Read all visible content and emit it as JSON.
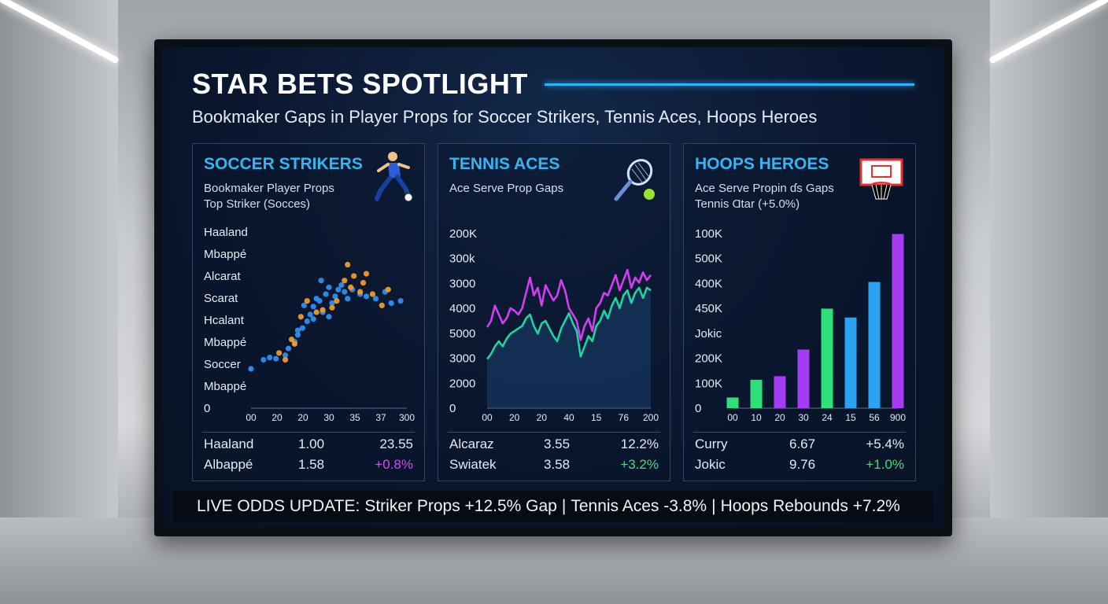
{
  "header": {
    "title": "STAR BETS SPOTLIGHT",
    "subtitle": "Bookmaker Gaps in Player Props for Soccer Strikers, Tennis Aces, Hoops Heroes"
  },
  "panels": {
    "soccer": {
      "title": "SOCCER STRIKERS",
      "sub1": "Bookmaker Player Props",
      "sub2": "Top Striker (Socces)",
      "icon": "soccer-player-icon",
      "rows": [
        {
          "name": "Haaland",
          "odds": "1.00",
          "gap": "23.55",
          "gap_color": "#e6ebf2"
        },
        {
          "name": "Albappé",
          "odds": "1.58",
          "gap": "+0.8%",
          "gap_color": "#d24cf0"
        }
      ]
    },
    "tennis": {
      "title": "TENNIS ACES",
      "sub1": "Ace Serve Prop Gaps",
      "icon": "tennis-racket-icon",
      "rows": [
        {
          "name": "Alcaraz",
          "odds": "3.55",
          "gap": "12.2%",
          "gap_color": "#e6ebf2"
        },
        {
          "name": "Swiatek",
          "odds": "3.58",
          "gap": "+3.2%",
          "gap_color": "#3ee07a"
        }
      ]
    },
    "hoops": {
      "title": "HOOPS HEROES",
      "sub1": "Ace Serve Propin ɗs Gaps",
      "sub2": "Tennis Ɑtar (+5.0%)",
      "icon": "basketball-hoop-icon",
      "rows": [
        {
          "name": "Curry",
          "odds": "6.67",
          "gap": "+5.4%",
          "gap_color": "#e6ebf2"
        },
        {
          "name": "Jokic",
          "odds": "9.76",
          "gap": "+1.0%",
          "gap_color": "#3ee07a"
        }
      ]
    }
  },
  "ticker": {
    "label": "LIVE ODDS UPDATE:",
    "items": [
      "Striker Props +12.5% Gap",
      "|",
      "Tennis Aces -3.8%",
      "|",
      "Hoops Rebounds +7.2%"
    ]
  },
  "colors": {
    "accent": "#36b5f0",
    "magenta": "#d63cf2",
    "green": "#3ee07a"
  },
  "chart_data": [
    {
      "type": "scatter",
      "title": "SOCCER STRIKERS",
      "y_tick_labels": [
        "Haaland",
        "Mbappé",
        "Alcarat",
        "Scarat",
        "Hcalant",
        "Mbappé",
        "Soccer",
        "Mbappé",
        "0"
      ],
      "x_tick_labels": [
        "00",
        "20",
        "20",
        "30",
        "35",
        "37",
        "300"
      ],
      "series": [
        {
          "color": "#2a8ff0",
          "points": [
            [
              0.0,
              0.0
            ],
            [
              0.08,
              0.08
            ],
            [
              0.12,
              0.1
            ],
            [
              0.16,
              0.09
            ],
            [
              0.22,
              0.12
            ],
            [
              0.24,
              0.18
            ],
            [
              0.28,
              0.24
            ],
            [
              0.3,
              0.3
            ],
            [
              0.33,
              0.36
            ],
            [
              0.36,
              0.42
            ],
            [
              0.38,
              0.48
            ],
            [
              0.4,
              0.55
            ],
            [
              0.42,
              0.62
            ],
            [
              0.44,
              0.6
            ],
            [
              0.46,
              0.5
            ],
            [
              0.48,
              0.66
            ],
            [
              0.5,
              0.72
            ],
            [
              0.52,
              0.58
            ],
            [
              0.54,
              0.64
            ],
            [
              0.56,
              0.7
            ],
            [
              0.58,
              0.74
            ],
            [
              0.6,
              0.68
            ],
            [
              0.62,
              0.62
            ],
            [
              0.65,
              0.7
            ],
            [
              0.7,
              0.66
            ],
            [
              0.74,
              0.64
            ],
            [
              0.8,
              0.62
            ],
            [
              0.86,
              0.68
            ],
            [
              0.9,
              0.58
            ],
            [
              0.96,
              0.6
            ],
            [
              0.34,
              0.56
            ],
            [
              0.4,
              0.44
            ],
            [
              0.5,
              0.46
            ],
            [
              0.3,
              0.34
            ],
            [
              0.45,
              0.78
            ]
          ]
        },
        {
          "color": "#f09a2a",
          "points": [
            [
              0.18,
              0.14
            ],
            [
              0.22,
              0.08
            ],
            [
              0.26,
              0.26
            ],
            [
              0.28,
              0.22
            ],
            [
              0.32,
              0.46
            ],
            [
              0.36,
              0.6
            ],
            [
              0.42,
              0.5
            ],
            [
              0.46,
              0.52
            ],
            [
              0.52,
              0.54
            ],
            [
              0.55,
              0.6
            ],
            [
              0.6,
              0.78
            ],
            [
              0.62,
              0.92
            ],
            [
              0.64,
              0.72
            ],
            [
              0.66,
              0.82
            ],
            [
              0.7,
              0.68
            ],
            [
              0.72,
              0.76
            ],
            [
              0.74,
              0.84
            ],
            [
              0.78,
              0.66
            ],
            [
              0.84,
              0.56
            ],
            [
              0.88,
              0.7
            ]
          ]
        }
      ]
    },
    {
      "type": "line",
      "title": "TENNIS ACES",
      "y_tick_labels": [
        "200K",
        "300k",
        "3000",
        "4000",
        "5000",
        "3000",
        "2000",
        "0"
      ],
      "x_tick_labels": [
        "00",
        "20",
        "20",
        "40",
        "15",
        "76",
        "200"
      ],
      "series": [
        {
          "color": "#d63cf2",
          "values": [
            0.45,
            0.5,
            0.62,
            0.55,
            0.48,
            0.52,
            0.6,
            0.58,
            0.55,
            0.6,
            0.72,
            0.84,
            0.7,
            0.76,
            0.62,
            0.78,
            0.72,
            0.66,
            0.7,
            0.82,
            0.74,
            0.6,
            0.55,
            0.5,
            0.35,
            0.46,
            0.52,
            0.42,
            0.6,
            0.64,
            0.72,
            0.7,
            0.78,
            0.86,
            0.74,
            0.82,
            0.9,
            0.76,
            0.84,
            0.8,
            0.88,
            0.82,
            0.86
          ]
        },
        {
          "color": "#22d3a0",
          "values": [
            0.2,
            0.24,
            0.3,
            0.34,
            0.3,
            0.36,
            0.4,
            0.42,
            0.44,
            0.46,
            0.52,
            0.55,
            0.46,
            0.4,
            0.48,
            0.5,
            0.44,
            0.38,
            0.34,
            0.44,
            0.5,
            0.56,
            0.48,
            0.42,
            0.22,
            0.3,
            0.38,
            0.34,
            0.46,
            0.5,
            0.58,
            0.52,
            0.62,
            0.68,
            0.6,
            0.7,
            0.74,
            0.64,
            0.72,
            0.76,
            0.68,
            0.76,
            0.74
          ]
        }
      ]
    },
    {
      "type": "bar",
      "title": "HOOPS HEROES",
      "y_tick_labels": [
        "100K",
        "500K",
        "400K",
        "450K",
        "Jokic",
        "200K",
        "100K",
        "0"
      ],
      "x_tick_labels": [
        "00",
        "10",
        "20",
        "30",
        "24",
        "15",
        "56",
        "900"
      ],
      "values": [
        0.06,
        0.16,
        0.18,
        0.33,
        0.56,
        0.51,
        0.71,
        0.98
      ],
      "colors": [
        "#2ee07a",
        "#2ee07a",
        "#a63cf2",
        "#a63cf2",
        "#2ee07a",
        "#2aa3f0",
        "#2aa3f0",
        "#a63cf2"
      ]
    }
  ]
}
